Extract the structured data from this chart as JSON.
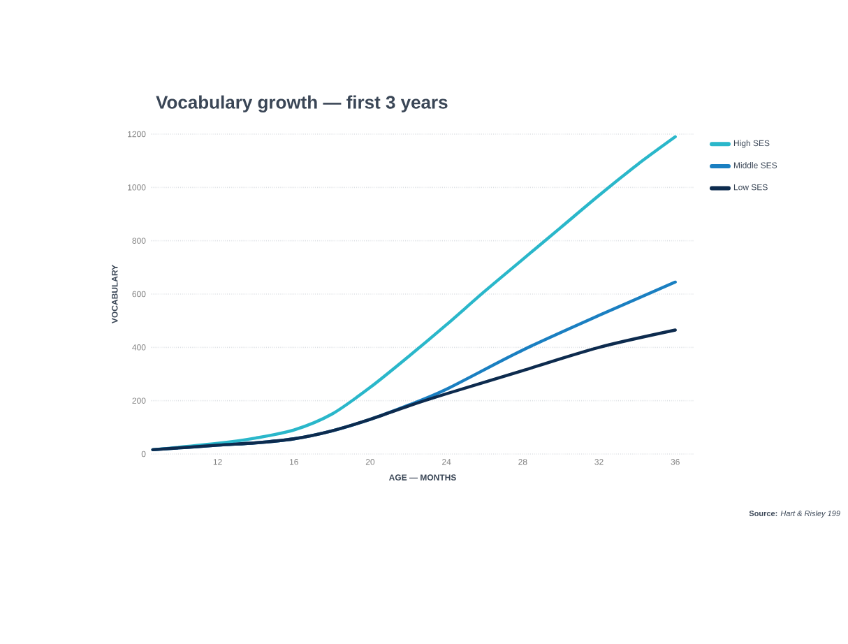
{
  "chart_data": {
    "type": "line",
    "title": "Vocabulary growth — first 3 years",
    "xlabel": "AGE — MONTHS",
    "ylabel": "VOCABULARY",
    "xlim": [
      8.5,
      37
    ],
    "ylim": [
      0,
      1200
    ],
    "xticks": [
      12,
      16,
      20,
      24,
      28,
      32,
      36
    ],
    "yticks": [
      0,
      200,
      400,
      600,
      800,
      1000,
      1200
    ],
    "grid": "y",
    "legend": "top right",
    "line_style": "solid",
    "marker": "none",
    "annotations": [
      "**Source:** *Hart & Risley 199*"
    ],
    "series": [
      {
        "name": "High SES",
        "color": "#2ab7ca",
        "x": [
          8.6,
          12,
          14,
          16,
          18,
          20,
          22,
          24,
          26,
          28,
          30,
          32,
          34,
          36
        ],
        "values": [
          16,
          40,
          60,
          90,
          150,
          250,
          365,
          485,
          610,
          730,
          850,
          970,
          1085,
          1190
        ]
      },
      {
        "name": "Middle SES",
        "color": "#1a7fc1",
        "x": [
          8.6,
          12,
          14,
          16,
          18,
          20,
          22,
          24,
          28,
          32,
          36
        ],
        "values": [
          16,
          33,
          42,
          57,
          87,
          130,
          183,
          243,
          390,
          520,
          645
        ]
      },
      {
        "name": "Low SES",
        "color": "#0d2b4e",
        "x": [
          8.6,
          12,
          14,
          16,
          18,
          20,
          22,
          24,
          28,
          32,
          36
        ],
        "values": [
          16,
          33,
          42,
          57,
          87,
          130,
          180,
          226,
          313,
          400,
          465
        ]
      }
    ]
  }
}
